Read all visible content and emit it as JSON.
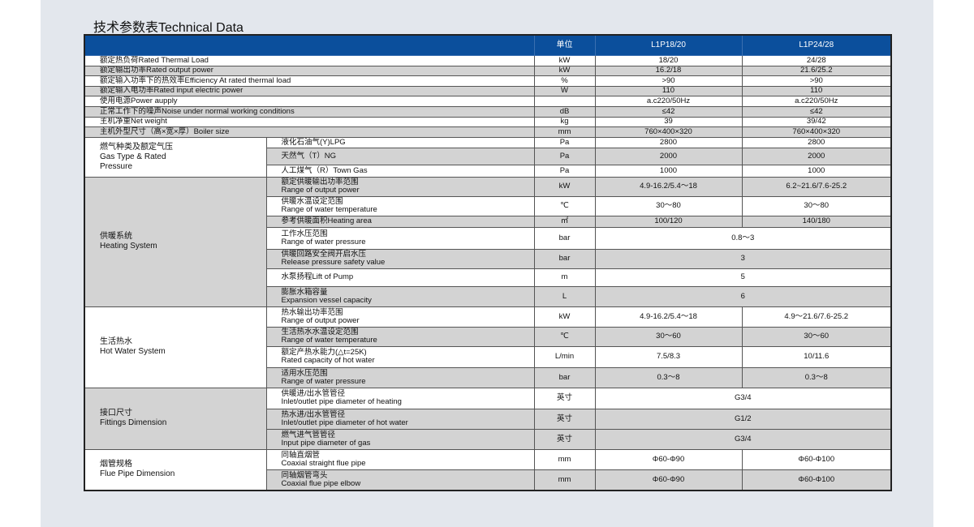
{
  "title": "技术参数表Technical Data",
  "header": {
    "label": "",
    "unit": "单位",
    "models": [
      "L1P18/20",
      "L1P24/28"
    ]
  },
  "colors": {
    "header_bg": "#0b4f9c",
    "row_shaded": "#d3d3d3",
    "background": "#e3e7ed"
  },
  "simple_rows": [
    {
      "label": "额定热负荷Rated Thermal Load",
      "unit": "kW",
      "values": [
        "18/20",
        "24/28"
      ],
      "shaded": false
    },
    {
      "label": "额定输出功率Rated output power",
      "unit": "kW",
      "values": [
        "16.2/18",
        "21.6/25.2"
      ],
      "shaded": true
    },
    {
      "label": "额定输入功率下的热效率Efficiency At rated thermal load",
      "unit": "%",
      "values": [
        ">90",
        ">90"
      ],
      "shaded": false
    },
    {
      "label": "额定输入电功率Rated input electric power",
      "unit": "W",
      "values": [
        "110",
        "110"
      ],
      "shaded": true
    },
    {
      "label": "使用电源Power aupply",
      "unit": "",
      "values": [
        "a.c220/50Hz",
        "a.c220/50Hz"
      ],
      "shaded": false
    },
    {
      "label": "正常工作下的噪声Noise under normal working conditions",
      "unit": "dB",
      "values": [
        "≤42",
        "≤42"
      ],
      "shaded": true
    },
    {
      "label": "主机净重Net weight",
      "unit": "kg",
      "values": [
        "39",
        "39/42"
      ],
      "shaded": false
    },
    {
      "label": "主机外型尺寸（高×宽×厚）Boiler size",
      "unit": "mm",
      "values": [
        "760×400×320",
        "760×400×320"
      ],
      "shaded": true
    }
  ],
  "groups": [
    {
      "label_cn": "燃气种类及额定气压",
      "label_en": "Gas Type & Rated Pressure",
      "shaded": false,
      "rows": [
        {
          "cn": "液化石油气(Y)LPG",
          "en": "",
          "unit": "Pa",
          "values": [
            "2800",
            "2800"
          ],
          "shaded": false
        },
        {
          "cn": "天然气（T）NG",
          "en": "",
          "unit": "Pa",
          "values": [
            "2000",
            "2000"
          ],
          "shaded": true
        },
        {
          "cn": "人工煤气（R）Town Gas",
          "en": "",
          "unit": "Pa",
          "values": [
            "1000",
            "1000"
          ],
          "shaded": false
        }
      ]
    },
    {
      "label_cn": "供暖系统",
      "label_en": "Heating System",
      "shaded": true,
      "rows": [
        {
          "cn": "额定供暖输出功率范围",
          "en": "Range of output power",
          "unit": "kW",
          "values": [
            "4.9-16.2/5.4～18",
            "6.2~21.6/7.6-25.2"
          ],
          "shaded": true
        },
        {
          "cn": "供暖水温设定范围",
          "en": "Range of water temperature",
          "unit": "℃",
          "values": [
            "30～80",
            "30～80"
          ],
          "shaded": false
        },
        {
          "cn": "参考供暖面积Heating area",
          "en": "",
          "unit": "㎡",
          "values": [
            "100/120",
            "140/180"
          ],
          "shaded": true
        },
        {
          "cn": "工作水压范围",
          "en": "Range of water pressure",
          "unit": "bar",
          "merged": "0.8～3",
          "shaded": false
        },
        {
          "cn": "供暖回路安全阀开启水压",
          "en": "Release pressure safety value",
          "unit": "bar",
          "merged": "3",
          "shaded": true
        },
        {
          "cn": "水泵扬程Lift of Pump",
          "en": "",
          "unit": "m",
          "merged": "5",
          "shaded": false
        },
        {
          "cn": "膨胀水箱容量",
          "en": "Expansion vessel capacity",
          "unit": "L",
          "merged": "6",
          "shaded": true
        }
      ]
    },
    {
      "label_cn": "生活热水",
      "label_en": "Hot Water System",
      "shaded": false,
      "rows": [
        {
          "cn": "热水输出功率范围",
          "en": "Range of output power",
          "unit": "kW",
          "values": [
            "4.9-16.2/5.4～18",
            "4.9～21.6/7.6-25.2"
          ],
          "shaded": false
        },
        {
          "cn": "生活热水水温设定范围",
          "en": "Range of water temperature",
          "unit": "℃",
          "values": [
            "30～60",
            "30～60"
          ],
          "shaded": true
        },
        {
          "cn": "额定产热水能力(△t=25K)",
          "en": "Rated capacity of hot water",
          "unit": "L/min",
          "values": [
            "7.5/8.3",
            "10/11.6"
          ],
          "shaded": false
        },
        {
          "cn": "适用水压范围",
          "en": "Range of water pressure",
          "unit": "bar",
          "values": [
            "0.3～8",
            "0.3～8"
          ],
          "shaded": true
        }
      ]
    },
    {
      "label_cn": "接口尺寸",
      "label_en": "Fittings Dimension",
      "shaded": true,
      "rows": [
        {
          "cn": "供暖进/出水管管径",
          "en": "Inlet/outlet pipe diameter of heating",
          "unit": "英寸",
          "merged": "G3/4",
          "shaded": false
        },
        {
          "cn": "热水进/出水管管径",
          "en": "Inlet/outlet pipe diameter of hot water",
          "unit": "英寸",
          "merged": "G1/2",
          "shaded": true
        },
        {
          "cn": "燃气进气管管径",
          "en": "Input pipe diameter of gas",
          "unit": "英寸",
          "merged": "G3/4",
          "shaded": true
        }
      ]
    },
    {
      "label_cn": "烟管规格",
      "label_en": "Flue Pipe Dimension",
      "shaded": false,
      "rows": [
        {
          "cn": "同轴直烟管",
          "en": "Coaxial straight flue pipe",
          "unit": "mm",
          "values": [
            "Φ60-Φ90",
            "Φ60-Φ100"
          ],
          "shaded": false
        },
        {
          "cn": "同轴烟管弯头",
          "en": "Coaxial flue pipe elbow",
          "unit": "mm",
          "values": [
            "Φ60-Φ90",
            "Φ60-Φ100"
          ],
          "shaded": true
        }
      ]
    }
  ]
}
